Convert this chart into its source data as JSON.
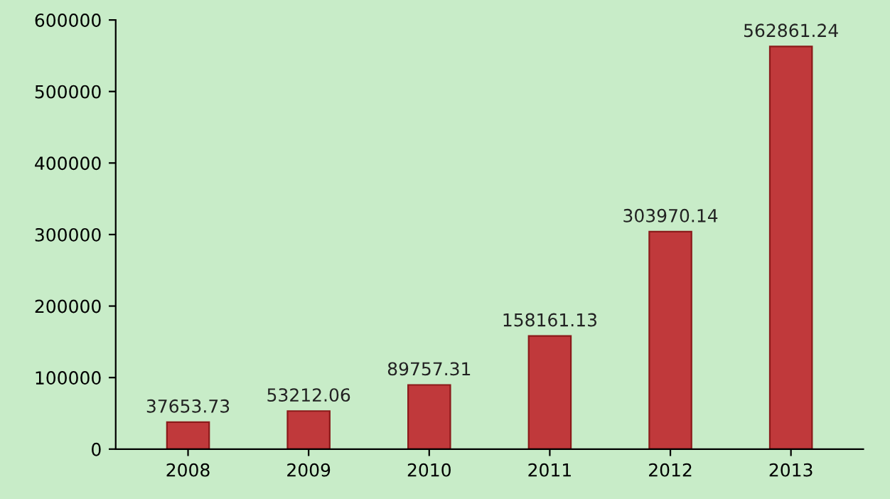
{
  "chart_data": {
    "type": "bar",
    "categories": [
      "2008",
      "2009",
      "2010",
      "2011",
      "2012",
      "2013"
    ],
    "values": [
      37653.73,
      53212.06,
      89757.31,
      158161.13,
      303970.14,
      562861.24
    ],
    "color": "#c0393b",
    "ylim": [
      0,
      600000
    ],
    "yticks": [
      0,
      100000,
      200000,
      300000,
      400000,
      500000,
      600000
    ],
    "data_labels": true,
    "grid": false
  }
}
